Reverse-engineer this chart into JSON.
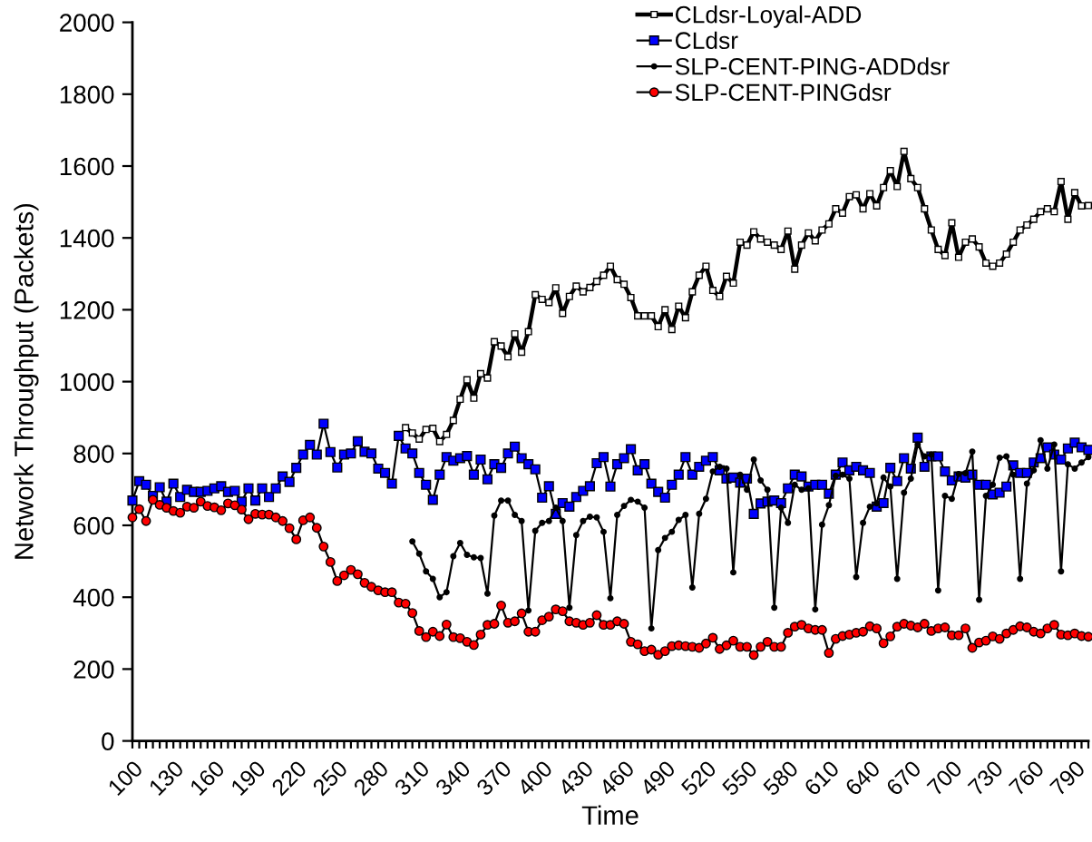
{
  "chart_data": {
    "type": "line",
    "xlabel": "Time",
    "ylabel": "Network Throughput (Packets)",
    "legend": "top right",
    "line_style": "solid",
    "xlim": [
      100,
      800
    ],
    "ylim": [
      0,
      2000
    ],
    "yticks": [
      0,
      200,
      400,
      600,
      800,
      1000,
      1200,
      1400,
      1600,
      1800,
      2000
    ],
    "xticks": [
      100,
      {
        "value": 105,
        "label": null
      },
      {
        "value": 110,
        "label": null
      },
      {
        "value": 115,
        "label": null
      },
      {
        "value": 120,
        "label": null
      },
      {
        "value": 125,
        "label": null
      },
      130,
      {
        "value": 135,
        "label": null
      },
      {
        "value": 140,
        "label": null
      },
      {
        "value": 145,
        "label": null
      },
      {
        "value": 150,
        "label": null
      },
      {
        "value": 155,
        "label": null
      },
      160,
      {
        "value": 165,
        "label": null
      },
      {
        "value": 170,
        "label": null
      },
      {
        "value": 175,
        "label": null
      },
      {
        "value": 180,
        "label": null
      },
      {
        "value": 185,
        "label": null
      },
      190,
      {
        "value": 195,
        "label": null
      },
      {
        "value": 200,
        "label": null
      },
      {
        "value": 205,
        "label": null
      },
      {
        "value": 210,
        "label": null
      },
      {
        "value": 215,
        "label": null
      },
      220,
      {
        "value": 225,
        "label": null
      },
      {
        "value": 230,
        "label": null
      },
      {
        "value": 235,
        "label": null
      },
      {
        "value": 240,
        "label": null
      },
      {
        "value": 245,
        "label": null
      },
      250,
      {
        "value": 255,
        "label": null
      },
      {
        "value": 260,
        "label": null
      },
      {
        "value": 265,
        "label": null
      },
      {
        "value": 270,
        "label": null
      },
      {
        "value": 275,
        "label": null
      },
      280,
      {
        "value": 285,
        "label": null
      },
      {
        "value": 290,
        "label": null
      },
      {
        "value": 295,
        "label": null
      },
      {
        "value": 300,
        "label": null
      },
      {
        "value": 305,
        "label": null
      },
      310,
      {
        "value": 315,
        "label": null
      },
      {
        "value": 320,
        "label": null
      },
      {
        "value": 325,
        "label": null
      },
      {
        "value": 330,
        "label": null
      },
      {
        "value": 335,
        "label": null
      },
      340,
      {
        "value": 345,
        "label": null
      },
      {
        "value": 350,
        "label": null
      },
      {
        "value": 355,
        "label": null
      },
      {
        "value": 360,
        "label": null
      },
      {
        "value": 365,
        "label": null
      },
      370,
      {
        "value": 375,
        "label": null
      },
      {
        "value": 380,
        "label": null
      },
      {
        "value": 385,
        "label": null
      },
      {
        "value": 390,
        "label": null
      },
      {
        "value": 395,
        "label": null
      },
      400,
      {
        "value": 405,
        "label": null
      },
      {
        "value": 410,
        "label": null
      },
      {
        "value": 415,
        "label": null
      },
      {
        "value": 420,
        "label": null
      },
      {
        "value": 425,
        "label": null
      },
      430,
      {
        "value": 435,
        "label": null
      },
      {
        "value": 440,
        "label": null
      },
      {
        "value": 445,
        "label": null
      },
      {
        "value": 450,
        "label": null
      },
      {
        "value": 455,
        "label": null
      },
      460,
      {
        "value": 465,
        "label": null
      },
      {
        "value": 470,
        "label": null
      },
      {
        "value": 475,
        "label": null
      },
      {
        "value": 480,
        "label": null
      },
      {
        "value": 485,
        "label": null
      },
      490,
      {
        "value": 495,
        "label": null
      },
      {
        "value": 500,
        "label": null
      },
      {
        "value": 505,
        "label": null
      },
      {
        "value": 510,
        "label": null
      },
      {
        "value": 515,
        "label": null
      },
      520,
      {
        "value": 525,
        "label": null
      },
      {
        "value": 530,
        "label": null
      },
      {
        "value": 535,
        "label": null
      },
      {
        "value": 540,
        "label": null
      },
      {
        "value": 545,
        "label": null
      },
      550,
      {
        "value": 555,
        "label": null
      },
      {
        "value": 560,
        "label": null
      },
      {
        "value": 565,
        "label": null
      },
      {
        "value": 570,
        "label": null
      },
      {
        "value": 575,
        "label": null
      },
      580,
      {
        "value": 585,
        "label": null
      },
      {
        "value": 590,
        "label": null
      },
      {
        "value": 595,
        "label": null
      },
      {
        "value": 600,
        "label": null
      },
      {
        "value": 605,
        "label": null
      },
      610,
      {
        "value": 615,
        "label": null
      },
      {
        "value": 620,
        "label": null
      },
      {
        "value": 625,
        "label": null
      },
      {
        "value": 630,
        "label": null
      },
      {
        "value": 635,
        "label": null
      },
      640,
      {
        "value": 645,
        "label": null
      },
      {
        "value": 650,
        "label": null
      },
      {
        "value": 655,
        "label": null
      },
      {
        "value": 660,
        "label": null
      },
      {
        "value": 665,
        "label": null
      },
      670,
      {
        "value": 675,
        "label": null
      },
      {
        "value": 680,
        "label": null
      },
      {
        "value": 685,
        "label": null
      },
      {
        "value": 690,
        "label": null
      },
      {
        "value": 695,
        "label": null
      },
      700,
      {
        "value": 705,
        "label": null
      },
      {
        "value": 710,
        "label": null
      },
      {
        "value": 715,
        "label": null
      },
      {
        "value": 720,
        "label": null
      },
      {
        "value": 725,
        "label": null
      },
      730,
      {
        "value": 735,
        "label": null
      },
      {
        "value": 740,
        "label": null
      },
      {
        "value": 745,
        "label": null
      },
      {
        "value": 750,
        "label": null
      },
      {
        "value": 755,
        "label": null
      },
      760,
      {
        "value": 765,
        "label": null
      },
      {
        "value": 770,
        "label": null
      },
      {
        "value": 775,
        "label": null
      },
      {
        "value": 780,
        "label": null
      },
      {
        "value": 785,
        "label": null
      },
      790,
      {
        "value": 795,
        "label": null
      },
      {
        "value": 800,
        "label": null
      }
    ],
    "x": [
      100,
      105,
      110,
      115,
      120,
      125,
      130,
      135,
      140,
      145,
      150,
      155,
      160,
      165,
      170,
      175,
      180,
      185,
      190,
      195,
      200,
      205,
      210,
      215,
      220,
      225,
      230,
      235,
      240,
      245,
      250,
      255,
      260,
      265,
      270,
      275,
      280,
      285,
      290,
      295,
      300,
      305,
      310,
      315,
      320,
      325,
      330,
      335,
      340,
      345,
      350,
      355,
      360,
      365,
      370,
      375,
      380,
      385,
      390,
      395,
      400,
      405,
      410,
      415,
      420,
      425,
      430,
      435,
      440,
      445,
      450,
      455,
      460,
      465,
      470,
      475,
      480,
      485,
      490,
      495,
      500,
      505,
      510,
      515,
      520,
      525,
      530,
      535,
      540,
      545,
      550,
      555,
      560,
      565,
      570,
      575,
      580,
      585,
      590,
      595,
      600,
      605,
      610,
      615,
      620,
      625,
      630,
      635,
      640,
      645,
      650,
      655,
      660,
      665,
      670,
      675,
      680,
      685,
      690,
      695,
      700,
      705,
      710,
      715,
      720,
      725,
      730,
      735,
      740,
      745,
      750,
      755,
      760,
      765,
      770,
      775,
      780,
      785,
      790,
      795,
      800
    ],
    "series": [
      {
        "name": "CLdsr-Loyal-ADD",
        "color": "#000000",
        "marker": "square",
        "values": [
          null,
          null,
          null,
          null,
          null,
          null,
          null,
          null,
          null,
          null,
          null,
          null,
          null,
          null,
          null,
          null,
          null,
          null,
          null,
          null,
          null,
          null,
          null,
          null,
          null,
          null,
          null,
          null,
          null,
          null,
          null,
          null,
          null,
          null,
          null,
          null,
          null,
          null,
          null,
          null,
          872,
          857,
          840,
          867,
          870,
          833,
          853,
          892,
          951,
          1005,
          954,
          1022,
          1010,
          1111,
          1099,
          1069,
          1133,
          1082,
          1139,
          1242,
          1229,
          1220,
          1261,
          1190,
          1237,
          1266,
          1250,
          1262,
          1279,
          1296,
          1321,
          1284,
          1271,
          1234,
          1183,
          1183,
          1183,
          1153,
          1200,
          1145,
          1210,
          1178,
          1250,
          1296,
          1321,
          1254,
          1237,
          1293,
          1274,
          1388,
          1380,
          1417,
          1397,
          1388,
          1380,
          1368,
          1419,
          1313,
          1380,
          1414,
          1392,
          1422,
          1439,
          1481,
          1469,
          1515,
          1520,
          1481,
          1523,
          1489,
          1540,
          1587,
          1543,
          1641,
          1565,
          1540,
          1481,
          1422,
          1368,
          1351,
          1442,
          1346,
          1388,
          1397,
          1375,
          1330,
          1321,
          1330,
          1355,
          1388,
          1422,
          1436,
          1452,
          1473,
          1481,
          1473,
          1557,
          1452,
          1526,
          1489,
          1490
        ]
      },
      {
        "name": "CLdsr",
        "color": "#0000ff",
        "marker": "square",
        "values": [
          669,
          723,
          713,
          682,
          706,
          666,
          716,
          679,
          699,
          693,
          693,
          696,
          703,
          709,
          693,
          696,
          666,
          703,
          669,
          703,
          679,
          703,
          736,
          721,
          760,
          797,
          824,
          797,
          883,
          804,
          761,
          797,
          800,
          834,
          805,
          800,
          758,
          746,
          716,
          849,
          814,
          800,
          746,
          713,
          671,
          741,
          790,
          780,
          787,
          793,
          741,
          783,
          728,
          770,
          760,
          800,
          819,
          787,
          770,
          756,
          677,
          709,
          632,
          662,
          652,
          679,
          696,
          709,
          773,
          790,
          708,
          770,
          787,
          812,
          753,
          770,
          716,
          693,
          677,
          713,
          741,
          790,
          741,
          763,
          780,
          790,
          753,
          730,
          733,
          719,
          730,
          632,
          661,
          666,
          669,
          662,
          703,
          741,
          736,
          708,
          713,
          713,
          688,
          741,
          775,
          753,
          763,
          753,
          746,
          652,
          662,
          760,
          723,
          787,
          758,
          844,
          763,
          792,
          792,
          750,
          725,
          736,
          733,
          741,
          713,
          713,
          686,
          691,
          708,
          767,
          746,
          746,
          775,
          787,
          817,
          797,
          783,
          814,
          830,
          817,
          810
        ]
      },
      {
        "name": "SLP-CENT-PING-ADDdsr",
        "color": "#000000",
        "marker": "circle",
        "values": [
          null,
          null,
          null,
          null,
          null,
          null,
          null,
          null,
          null,
          null,
          null,
          null,
          null,
          null,
          null,
          null,
          null,
          null,
          null,
          null,
          null,
          null,
          null,
          null,
          null,
          null,
          null,
          null,
          null,
          null,
          null,
          null,
          null,
          null,
          null,
          null,
          null,
          null,
          null,
          null,
          null,
          555,
          521,
          472,
          451,
          400,
          414,
          514,
          551,
          518,
          511,
          509,
          410,
          627,
          669,
          669,
          629,
          612,
          363,
          585,
          607,
          612,
          649,
          612,
          371,
          573,
          612,
          624,
          622,
          582,
          397,
          629,
          654,
          671,
          666,
          649,
          313,
          531,
          565,
          582,
          615,
          629,
          427,
          632,
          674,
          750,
          763,
          758,
          469,
          741,
          699,
          783,
          725,
          699,
          371,
          649,
          607,
          713,
          699,
          703,
          366,
          602,
          656,
          738,
          741,
          730,
          456,
          607,
          652,
          661,
          733,
          708,
          451,
          691,
          730,
          825,
          792,
          797,
          419,
          682,
          674,
          743,
          745,
          805,
          393,
          682,
          713,
          788,
          792,
          741,
          451,
          716,
          753,
          837,
          758,
          825,
          472,
          770,
          758,
          775,
          790
        ]
      },
      {
        "name": "SLP-CENT-PINGdsr",
        "color": "#ff0000",
        "marker": "circle",
        "values": [
          622,
          645,
          612,
          671,
          657,
          649,
          640,
          635,
          652,
          649,
          666,
          654,
          650,
          642,
          661,
          656,
          644,
          617,
          632,
          630,
          630,
          622,
          612,
          592,
          561,
          614,
          622,
          593,
          541,
          498,
          445,
          461,
          476,
          464,
          440,
          429,
          419,
          414,
          414,
          385,
          382,
          356,
          306,
          289,
          304,
          292,
          324,
          289,
          286,
          276,
          267,
          296,
          323,
          326,
          377,
          329,
          333,
          355,
          304,
          304,
          336,
          346,
          366,
          361,
          333,
          329,
          323,
          329,
          350,
          323,
          323,
          333,
          326,
          276,
          269,
          250,
          254,
          240,
          250,
          264,
          266,
          264,
          262,
          259,
          271,
          287,
          256,
          266,
          279,
          262,
          262,
          239,
          262,
          276,
          262,
          262,
          301,
          318,
          323,
          313,
          309,
          309,
          245,
          284,
          292,
          296,
          301,
          304,
          319,
          313,
          272,
          291,
          318,
          326,
          321,
          316,
          326,
          306,
          313,
          316,
          294,
          294,
          313,
          259,
          274,
          279,
          291,
          284,
          299,
          309,
          319,
          316,
          304,
          299,
          313,
          323,
          296,
          294,
          299,
          292,
          290
        ]
      }
    ]
  }
}
